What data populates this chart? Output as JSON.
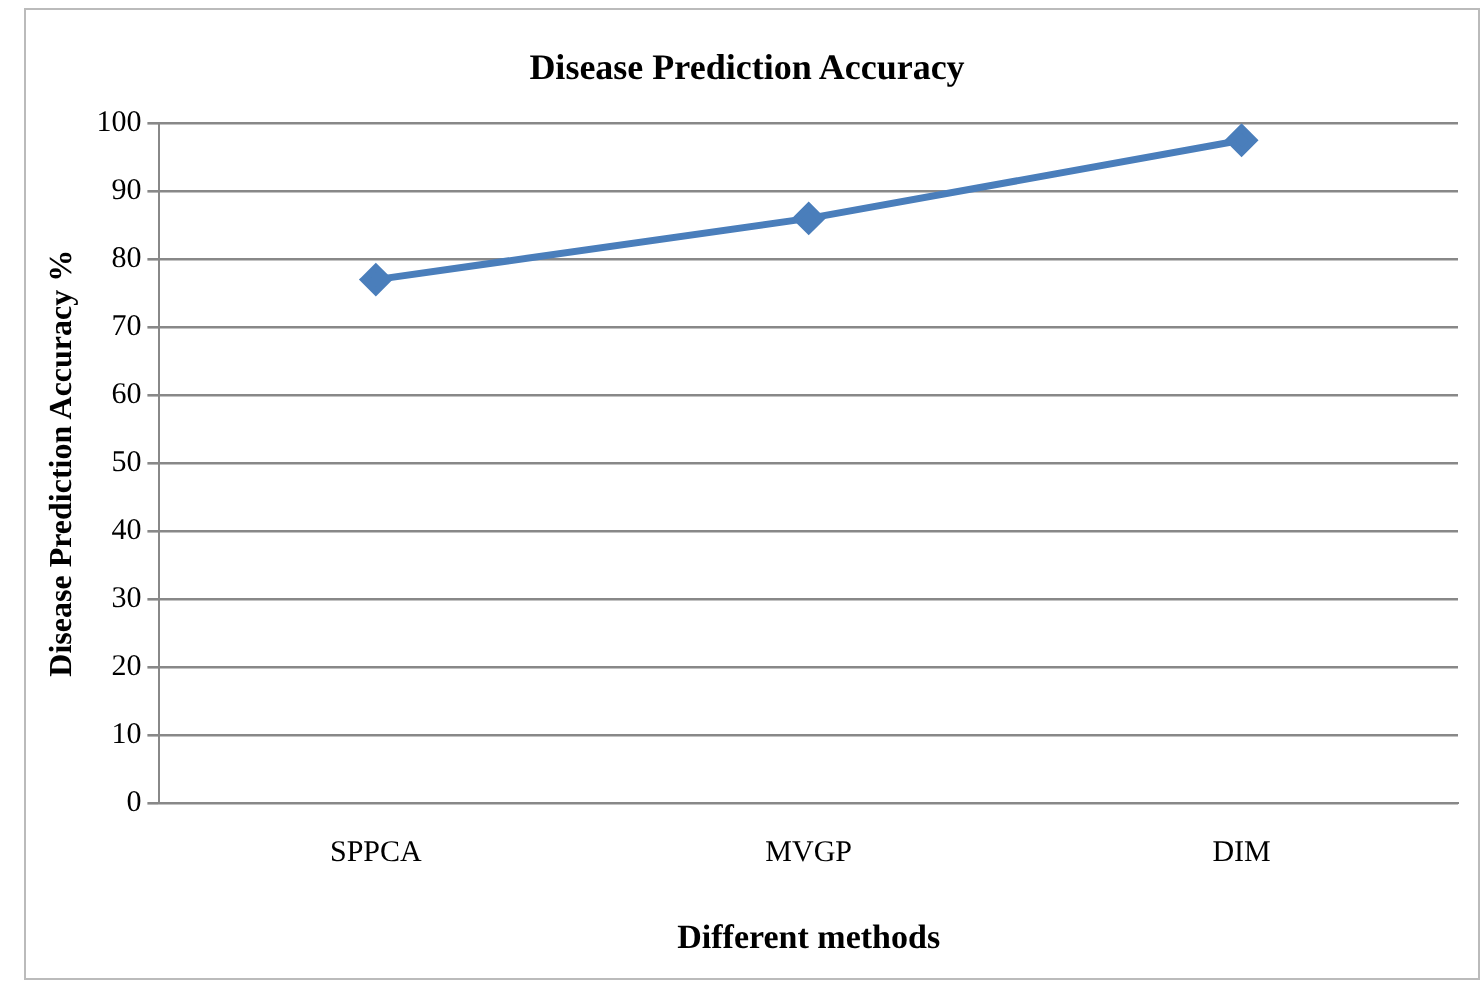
{
  "chart_data": {
    "type": "line",
    "title": "Disease Prediction Accuracy",
    "xlabel": "Different methods",
    "ylabel": "Disease Prediction Accuracy %",
    "categories": [
      "SPPCA",
      "MVGP",
      "DIM"
    ],
    "series": [
      {
        "color": "#4a7ebb",
        "values": [
          77,
          86,
          97.5
        ]
      }
    ],
    "ylim": [
      0,
      100
    ],
    "yticks": [
      0,
      10,
      20,
      30,
      40,
      50,
      60,
      70,
      80,
      90,
      100
    ],
    "grid": "y",
    "legend": false,
    "marker": "diamond",
    "line_style": "solid"
  }
}
